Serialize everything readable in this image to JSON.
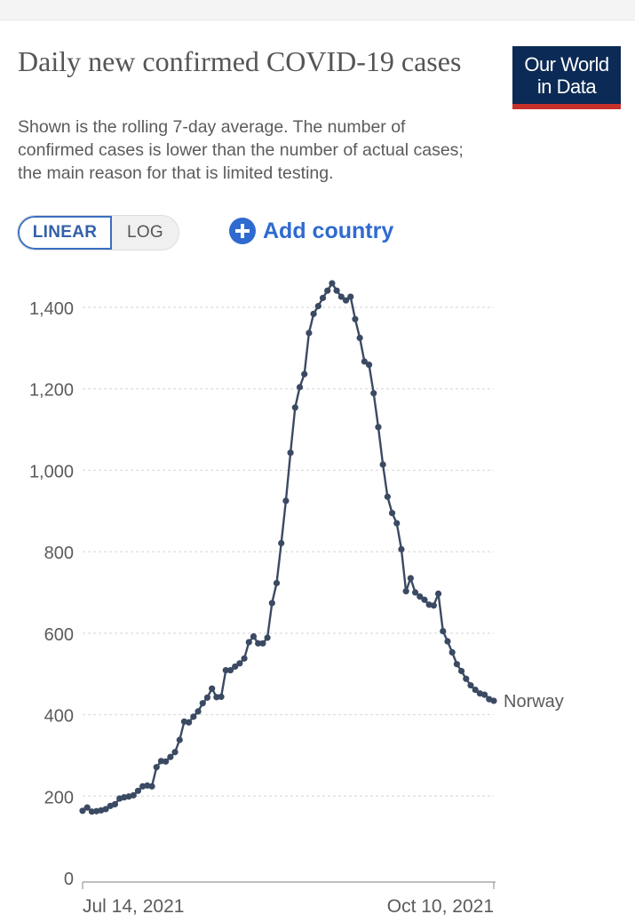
{
  "header": {
    "title": "Daily new confirmed COVID-19 cases",
    "subtitle": "Shown is the rolling 7-day average. The number of confirmed cases is lower than the number of actual cases; the main reason for that is limited testing.",
    "logo_line1": "Our World",
    "logo_line2": "in Data"
  },
  "controls": {
    "linear_label": "LINEAR",
    "log_label": "LOG",
    "add_country_label": "Add country",
    "active_scale": "linear"
  },
  "colors": {
    "series": "#3b4a63",
    "grid": "#dddddd",
    "accent": "#3a6fc1",
    "logo_bg": "#0b2a55",
    "logo_stripe": "#c8312b"
  },
  "chart_data": {
    "type": "line",
    "title": "Daily new confirmed COVID-19 cases",
    "xlabel": "",
    "ylabel": "",
    "ylim": [
      0,
      1400
    ],
    "y_ticks": [
      0,
      200,
      400,
      600,
      800,
      1000,
      1200,
      1400
    ],
    "y_tick_labels": [
      "0",
      "200",
      "400",
      "600",
      "800",
      "1,000",
      "1,200",
      "1,400"
    ],
    "x_tick_labels": [
      "Jul 14, 2021",
      "Oct 10, 2021"
    ],
    "x_range": [
      "2021-07-14",
      "2021-10-10"
    ],
    "grid": true,
    "series": [
      {
        "name": "Norway",
        "start_date": "2021-07-14",
        "values": [
          164,
          172,
          162,
          163,
          165,
          168,
          176,
          180,
          194,
          197,
          199,
          202,
          213,
          224,
          226,
          224,
          271,
          286,
          285,
          296,
          308,
          338,
          383,
          381,
          395,
          408,
          428,
          442,
          464,
          443,
          444,
          509,
          509,
          518,
          526,
          538,
          578,
          592,
          575,
          575,
          589,
          674,
          723,
          821,
          925,
          1043,
          1154,
          1204,
          1236,
          1337,
          1384,
          1403,
          1423,
          1441,
          1459,
          1441,
          1426,
          1417,
          1426,
          1371,
          1325,
          1267,
          1259,
          1189,
          1106,
          1014,
          935,
          895,
          870,
          806,
          703,
          735,
          700,
          690,
          682,
          670,
          668,
          697,
          605,
          580,
          553,
          524,
          507,
          488,
          472,
          461,
          452,
          449,
          438,
          434
        ]
      }
    ]
  }
}
